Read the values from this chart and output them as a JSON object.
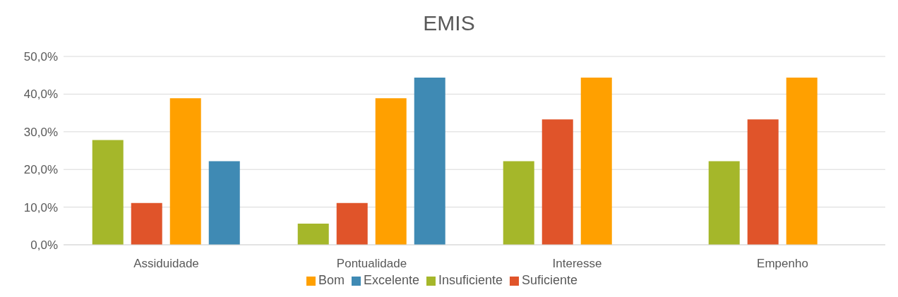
{
  "chart_data": {
    "type": "bar",
    "title": "EMIS",
    "categories": [
      "Assiduidade",
      "Pontualidade",
      "Interesse",
      "Empenho"
    ],
    "series": [
      {
        "name": "Insuficiente",
        "color": "#a5b72a",
        "values": [
          27.8,
          5.6,
          22.2,
          22.2
        ]
      },
      {
        "name": "Suficiente",
        "color": "#e0542a",
        "values": [
          11.1,
          11.1,
          33.3,
          33.3
        ]
      },
      {
        "name": "Bom",
        "color": "#ffa000",
        "values": [
          38.9,
          38.9,
          44.4,
          44.4
        ]
      },
      {
        "name": "Excelente",
        "color": "#3f8ab4",
        "values": [
          22.2,
          44.4,
          0,
          0
        ]
      }
    ],
    "ylim": [
      0,
      50
    ],
    "yticks": [
      {
        "value": 0,
        "label": "0,0%"
      },
      {
        "value": 10,
        "label": "10,0%"
      },
      {
        "value": 20,
        "label": "20,0%"
      },
      {
        "value": 30,
        "label": "30,0%"
      },
      {
        "value": 40,
        "label": "40,0%"
      },
      {
        "value": 50,
        "label": "50,0%"
      }
    ],
    "grid": "y",
    "legend": "bottom"
  }
}
